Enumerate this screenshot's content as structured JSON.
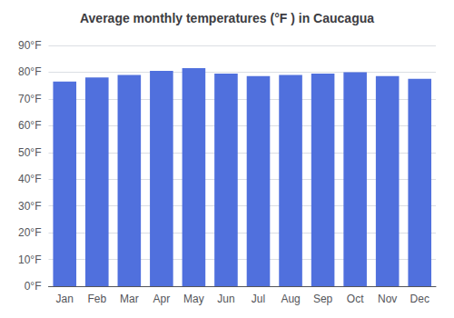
{
  "chart_data": {
    "type": "bar",
    "title": "Average monthly temperatures (°F ) in Caucagua",
    "categories": [
      "Jan",
      "Feb",
      "Mar",
      "Apr",
      "May",
      "Jun",
      "Jul",
      "Aug",
      "Sep",
      "Oct",
      "Nov",
      "Dec"
    ],
    "values": [
      76.5,
      78.0,
      79.0,
      80.5,
      81.5,
      79.5,
      78.5,
      79.0,
      79.5,
      80.0,
      78.5,
      77.5
    ],
    "ylim": [
      0,
      90
    ],
    "yticks": [
      {
        "value": 0,
        "label": "0°F"
      },
      {
        "value": 10,
        "label": "10°F"
      },
      {
        "value": 20,
        "label": "20°F"
      },
      {
        "value": 30,
        "label": "30°F"
      },
      {
        "value": 40,
        "label": "40°F"
      },
      {
        "value": 50,
        "label": "50°F"
      },
      {
        "value": 60,
        "label": "60°F"
      },
      {
        "value": 70,
        "label": "70°F"
      },
      {
        "value": 80,
        "label": "80°F"
      },
      {
        "value": 90,
        "label": "90°F"
      }
    ],
    "grid": true
  }
}
